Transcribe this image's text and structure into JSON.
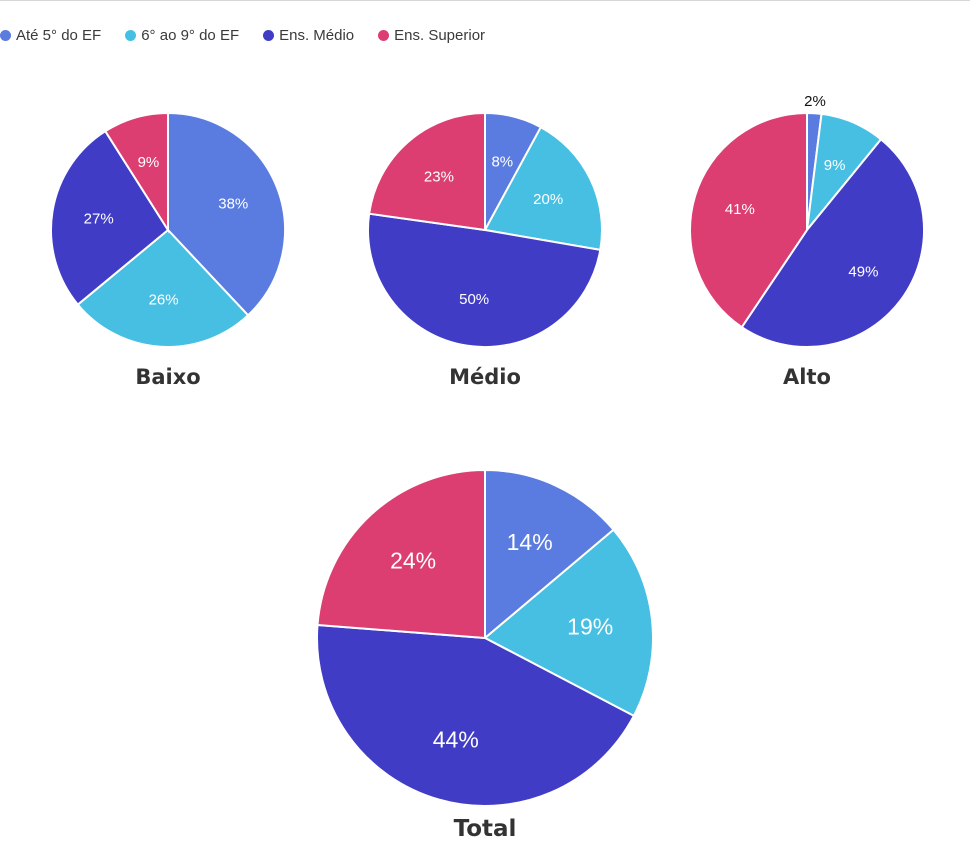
{
  "legend": {
    "items": [
      {
        "label": "Até 5° do EF",
        "color": "#5a7be0"
      },
      {
        "label": "6° ao 9° do EF",
        "color": "#47bfe2"
      },
      {
        "label": "Ens. Médio",
        "color": "#403cc6"
      },
      {
        "label": "Ens. Superior",
        "color": "#dc3e72"
      }
    ]
  },
  "chart_data": [
    {
      "type": "pie",
      "title": "Baixo",
      "categories": [
        "Até 5° do EF",
        "6° ao 9° do EF",
        "Ens. Médio",
        "Ens. Superior"
      ],
      "values": [
        38,
        26,
        27,
        9
      ],
      "labels": [
        "38%",
        "26%",
        "27%",
        "9%"
      ]
    },
    {
      "type": "pie",
      "title": "Médio",
      "categories": [
        "Até 5° do EF",
        "6° ao 9° do EF",
        "Ens. Médio",
        "Ens. Superior"
      ],
      "values": [
        8,
        20,
        50,
        23
      ],
      "labels": [
        "8%",
        "20%",
        "50%",
        "23%"
      ]
    },
    {
      "type": "pie",
      "title": "Alto",
      "categories": [
        "Até 5° do EF",
        "6° ao 9° do EF",
        "Ens. Médio",
        "Ens. Superior"
      ],
      "values": [
        2,
        9,
        49,
        41
      ],
      "labels": [
        "2%",
        "9%",
        "49%",
        "41%"
      ]
    },
    {
      "type": "pie",
      "title": "Total",
      "categories": [
        "Até 5° do EF",
        "6° ao 9° do EF",
        "Ens. Médio",
        "Ens. Superior"
      ],
      "values": [
        14,
        19,
        44,
        24
      ],
      "labels": [
        "14%",
        "19%",
        "44%",
        "24%"
      ]
    }
  ]
}
